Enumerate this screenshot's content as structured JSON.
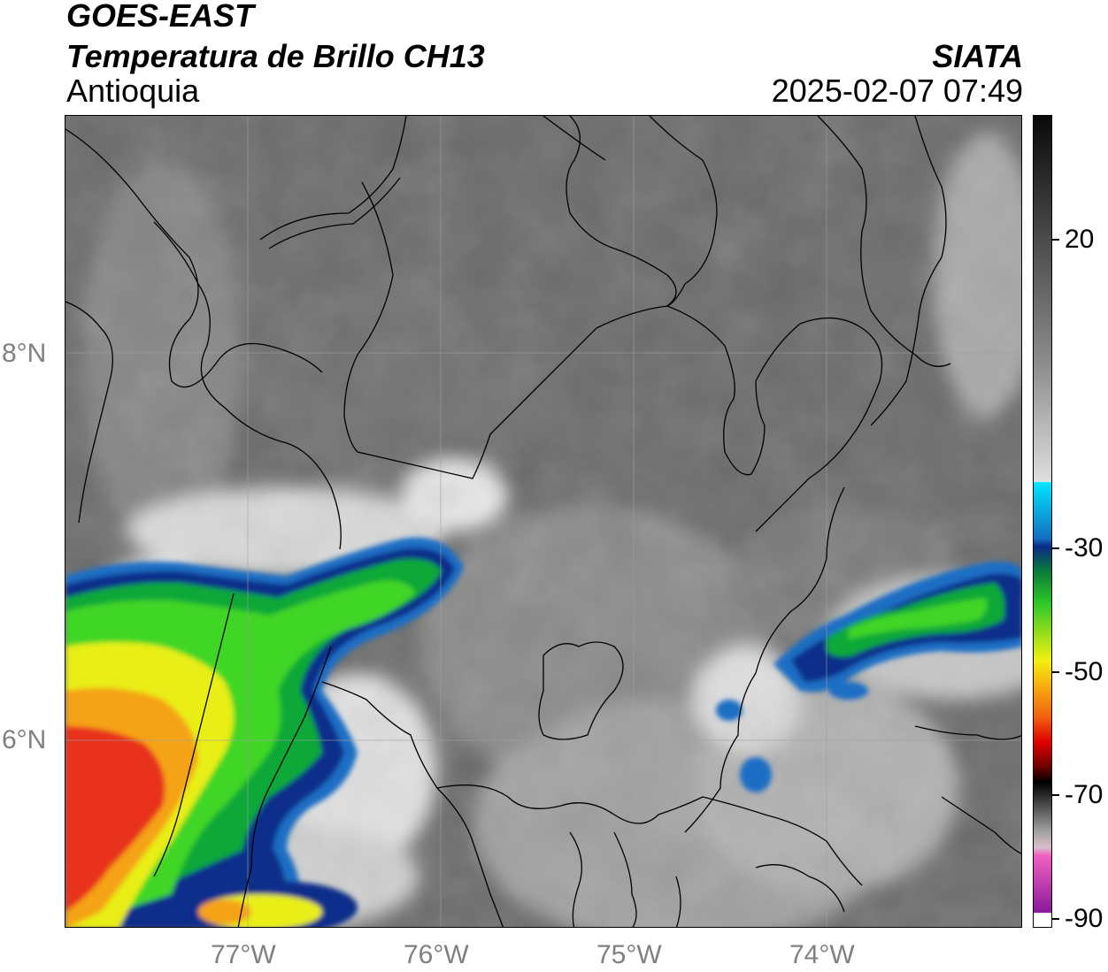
{
  "header": {
    "satellite": "GOES-EAST",
    "product": "Temperatura de Brillo CH13",
    "region": "Antioquia",
    "organization": "SIATA",
    "datetime": "2025-02-07 07:49"
  },
  "map": {
    "lat_labels": [
      "8°N",
      "6°N"
    ],
    "lon_labels": [
      "77°W",
      "76°W",
      "75°W",
      "74°W"
    ],
    "extent": {
      "lon_min": -77.95,
      "lon_max": -73.0,
      "lat_min": 4.95,
      "lat_max": 9.15
    }
  },
  "colorbar": {
    "tick_labels": [
      "20",
      "-30",
      "-50",
      "-70",
      "-90"
    ],
    "range": [
      -90,
      37
    ]
  }
}
